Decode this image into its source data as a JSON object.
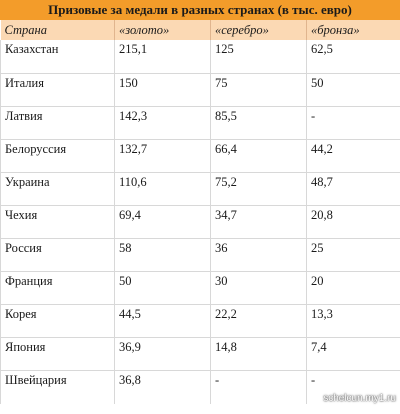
{
  "title": "Призовые за медали в разных странах (в тыс. евро)",
  "columns": [
    "Страна",
    "«золото»",
    "«серебро»",
    "«бронза»"
  ],
  "rows": [
    {
      "country": "Казахстан",
      "gold": "215,1",
      "silver": "125",
      "bronze": "62,5"
    },
    {
      "country": "Италия",
      "gold": "150",
      "silver": "75",
      "bronze": "50"
    },
    {
      "country": "Латвия",
      "gold": "142,3",
      "silver": "85,5",
      "bronze": "-"
    },
    {
      "country": "Белоруссия",
      "gold": "132,7",
      "silver": "66,4",
      "bronze": "44,2"
    },
    {
      "country": "Украина",
      "gold": "110,6",
      "silver": "75,2",
      "bronze": "48,7"
    },
    {
      "country": "Чехия",
      "gold": "69,4",
      "silver": "34,7",
      "bronze": "20,8"
    },
    {
      "country": "Россия",
      "gold": "58",
      "silver": "36",
      "bronze": "25"
    },
    {
      "country": "Франция",
      "gold": "50",
      "silver": "30",
      "bronze": "20"
    },
    {
      "country": "Корея",
      "gold": "44,5",
      "silver": "22,2",
      "bronze": "13,3"
    },
    {
      "country": "Япония",
      "gold": "36,9",
      "silver": "14,8",
      "bronze": "7,4"
    },
    {
      "country": "Швейцария",
      "gold": "36,8",
      "silver": "-",
      "bronze": "-"
    }
  ],
  "watermark": "schelcun.my1.ru",
  "colors": {
    "title_bg": "#f39c2a",
    "header_bg": "#fbd9b4",
    "grid": "#d8d8d8"
  }
}
